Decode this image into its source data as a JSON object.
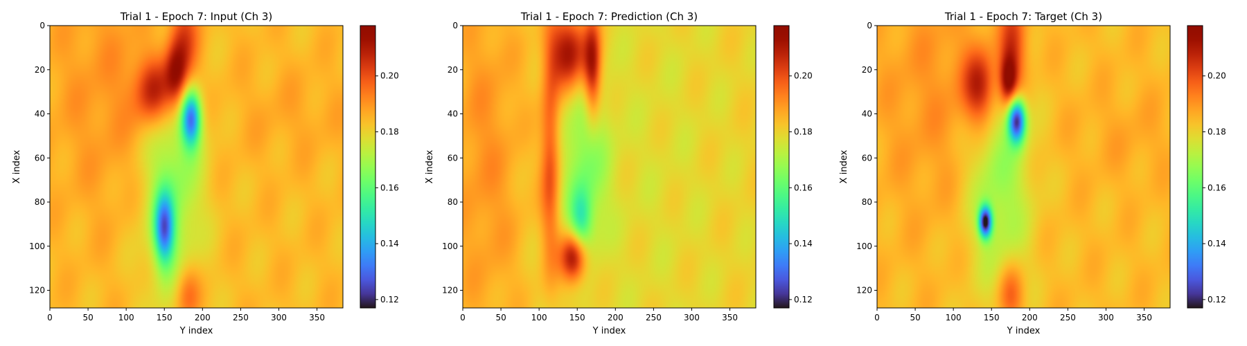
{
  "chart_data": [
    {
      "type": "heatmap",
      "title": "Trial 1 - Epoch 7: Input (Ch 3)",
      "xlabel": "Y index",
      "ylabel": "X index",
      "xlim": [
        0,
        384
      ],
      "ylim": [
        128,
        0
      ],
      "xticks": [
        "0",
        "50",
        "100",
        "150",
        "200",
        "250",
        "300",
        "350"
      ],
      "yticks": [
        "0",
        "20",
        "40",
        "60",
        "80",
        "100",
        "120"
      ],
      "colormap": "turbo",
      "color_range": [
        0.117,
        0.218
      ],
      "colorbar_ticks": [
        "0.12",
        "0.14",
        "0.16",
        "0.18",
        "0.20"
      ],
      "background_value": 0.184,
      "features": [
        {
          "x": 175,
          "y": 10,
          "sx": 14,
          "sy": 18,
          "value": 0.205
        },
        {
          "x": 137,
          "y": 30,
          "sx": 18,
          "sy": 11,
          "value": 0.21
        },
        {
          "x": 165,
          "y": 22,
          "sx": 10,
          "sy": 10,
          "value": 0.205
        },
        {
          "x": 185,
          "y": 42,
          "sx": 9,
          "sy": 9,
          "value": 0.135
        },
        {
          "x": 150,
          "y": 92,
          "sx": 9,
          "sy": 11,
          "value": 0.14
        },
        {
          "x": 160,
          "y": 70,
          "sx": 28,
          "sy": 40,
          "value": 0.165
        },
        {
          "x": 180,
          "y": 122,
          "sx": 12,
          "sy": 10,
          "value": 0.2
        },
        {
          "x": 80,
          "y": 30,
          "sx": 60,
          "sy": 40,
          "value": 0.19
        },
        {
          "x": 320,
          "y": 40,
          "sx": 60,
          "sy": 15,
          "value": 0.187
        }
      ]
    },
    {
      "type": "heatmap",
      "title": "Trial 1 - Epoch 7: Prediction (Ch 3)",
      "xlabel": "Y index",
      "ylabel": "X index",
      "xlim": [
        0,
        384
      ],
      "ylim": [
        128,
        0
      ],
      "xticks": [
        "0",
        "50",
        "100",
        "150",
        "200",
        "250",
        "300",
        "350"
      ],
      "yticks": [
        "0",
        "20",
        "40",
        "60",
        "80",
        "100",
        "120"
      ],
      "colormap": "turbo",
      "color_range": [
        0.117,
        0.218
      ],
      "colorbar_ticks": [
        "0.12",
        "0.14",
        "0.16",
        "0.18",
        "0.20"
      ],
      "background_value": 0.18,
      "features": [
        {
          "x": 140,
          "y": 12,
          "sx": 18,
          "sy": 12,
          "value": 0.213
        },
        {
          "x": 170,
          "y": 20,
          "sx": 8,
          "sy": 16,
          "value": 0.21
        },
        {
          "x": 115,
          "y": 60,
          "sx": 9,
          "sy": 35,
          "value": 0.2
        },
        {
          "x": 145,
          "y": 105,
          "sx": 12,
          "sy": 8,
          "value": 0.215
        },
        {
          "x": 160,
          "y": 60,
          "sx": 22,
          "sy": 28,
          "value": 0.165
        },
        {
          "x": 155,
          "y": 88,
          "sx": 10,
          "sy": 10,
          "value": 0.158
        },
        {
          "x": 30,
          "y": 60,
          "sx": 40,
          "sy": 70,
          "value": 0.19
        },
        {
          "x": 250,
          "y": 60,
          "sx": 60,
          "sy": 60,
          "value": 0.178
        }
      ]
    },
    {
      "type": "heatmap",
      "title": "Trial 1 - Epoch 7: Target (Ch 3)",
      "xlabel": "Y index",
      "ylabel": "X index",
      "xlim": [
        0,
        384
      ],
      "ylim": [
        128,
        0
      ],
      "xticks": [
        "0",
        "50",
        "100",
        "150",
        "200",
        "250",
        "300",
        "350"
      ],
      "yticks": [
        "0",
        "20",
        "40",
        "60",
        "80",
        "100",
        "120"
      ],
      "colormap": "turbo",
      "color_range": [
        0.117,
        0.218
      ],
      "colorbar_ticks": [
        "0.12",
        "0.14",
        "0.16",
        "0.18",
        "0.20"
      ],
      "background_value": 0.184,
      "features": [
        {
          "x": 178,
          "y": 10,
          "sx": 13,
          "sy": 16,
          "value": 0.205
        },
        {
          "x": 135,
          "y": 28,
          "sx": 16,
          "sy": 12,
          "value": 0.21
        },
        {
          "x": 172,
          "y": 25,
          "sx": 8,
          "sy": 8,
          "value": 0.212
        },
        {
          "x": 183,
          "y": 43,
          "sx": 8,
          "sy": 7,
          "value": 0.125
        },
        {
          "x": 142,
          "y": 89,
          "sx": 6,
          "sy": 5,
          "value": 0.122
        },
        {
          "x": 160,
          "y": 70,
          "sx": 30,
          "sy": 36,
          "value": 0.167
        },
        {
          "x": 175,
          "y": 122,
          "sx": 12,
          "sy": 10,
          "value": 0.2
        },
        {
          "x": 80,
          "y": 30,
          "sx": 60,
          "sy": 40,
          "value": 0.19
        },
        {
          "x": 330,
          "y": 50,
          "sx": 50,
          "sy": 15,
          "value": 0.187
        }
      ]
    }
  ]
}
